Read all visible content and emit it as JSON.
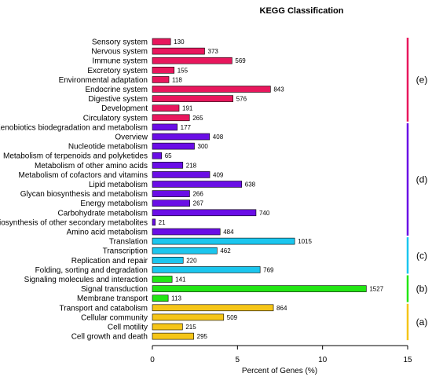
{
  "chart_data": {
    "type": "bar",
    "orientation": "horizontal",
    "title": "KEGG Classification",
    "xlabel": "Percent of Genes (%)",
    "xlim": [
      0,
      15
    ],
    "xticks": [
      "0",
      "5",
      "10",
      "15"
    ],
    "grid": false,
    "categories": [
      "Sensory system",
      "Nervous  system",
      "Immune  system",
      "Excretory system",
      "Environmental adaptation",
      "Endocrine system",
      "Digestive system",
      "Development",
      "Circulatory system",
      "Xenobiotics biodegradation and metabolism",
      "Overview",
      "Nucleotide metabolism",
      "Metabolism of terpenoids and polyketides",
      "Metabolism of other amino acids",
      "Metabolism of cofactors and vitamins",
      "Lipid metabolism",
      "Glycan biosynthesis and metabolism",
      "Energy metabolism",
      "Carbohydrate metabolism",
      "Biosynthesis of other secondary metabolites",
      "Amino acid metabolism",
      "Translation",
      "Transcription",
      "Replication and repair",
      "Folding, sorting and degradation",
      "Signaling molecules and interaction",
      "Signal transduction",
      "Membrane transport",
      "Transport and catabolism",
      "Cellular community",
      "Cell motility",
      "Cell growth and death"
    ],
    "counts": [
      "130",
      "373",
      "569",
      "155",
      "118",
      "843",
      "576",
      "191",
      "265",
      "177",
      "408",
      "300",
      "65",
      "218",
      "409",
      "638",
      "266",
      "267",
      "740",
      "21",
      "484",
      "1015",
      "462",
      "220",
      "769",
      "141",
      "1527",
      "113",
      "864",
      "509",
      "215",
      "295"
    ],
    "values": [
      1.07,
      3.07,
      4.68,
      1.28,
      0.97,
      6.94,
      4.74,
      1.57,
      2.18,
      1.46,
      3.36,
      2.47,
      0.54,
      1.79,
      3.37,
      5.25,
      2.19,
      2.2,
      6.09,
      0.17,
      3.98,
      8.36,
      3.8,
      1.81,
      6.33,
      1.16,
      12.57,
      0.93,
      7.11,
      4.19,
      1.77,
      2.43
    ],
    "colors": [
      "#e8175d",
      "#e8175d",
      "#e8175d",
      "#e8175d",
      "#e8175d",
      "#e8175d",
      "#e8175d",
      "#e8175d",
      "#e8175d",
      "#6a0ee6",
      "#6a0ee6",
      "#6a0ee6",
      "#6a0ee6",
      "#6a0ee6",
      "#6a0ee6",
      "#6a0ee6",
      "#6a0ee6",
      "#6a0ee6",
      "#6a0ee6",
      "#6a0ee6",
      "#6a0ee6",
      "#1bc6ee",
      "#1bc6ee",
      "#1bc6ee",
      "#1bc6ee",
      "#23e614",
      "#23e614",
      "#23e614",
      "#f5c518",
      "#f5c518",
      "#f5c518",
      "#f5c518"
    ],
    "groups": [
      {
        "label": "(e)",
        "start": 0,
        "end": 8,
        "color": "#e8175d"
      },
      {
        "label": "(d)",
        "start": 9,
        "end": 20,
        "color": "#6a0ee6"
      },
      {
        "label": "(c)",
        "start": 21,
        "end": 24,
        "color": "#1bc6ee"
      },
      {
        "label": "(b)",
        "start": 25,
        "end": 27,
        "color": "#23e614"
      },
      {
        "label": "(a)",
        "start": 28,
        "end": 31,
        "color": "#f5c518"
      }
    ]
  }
}
